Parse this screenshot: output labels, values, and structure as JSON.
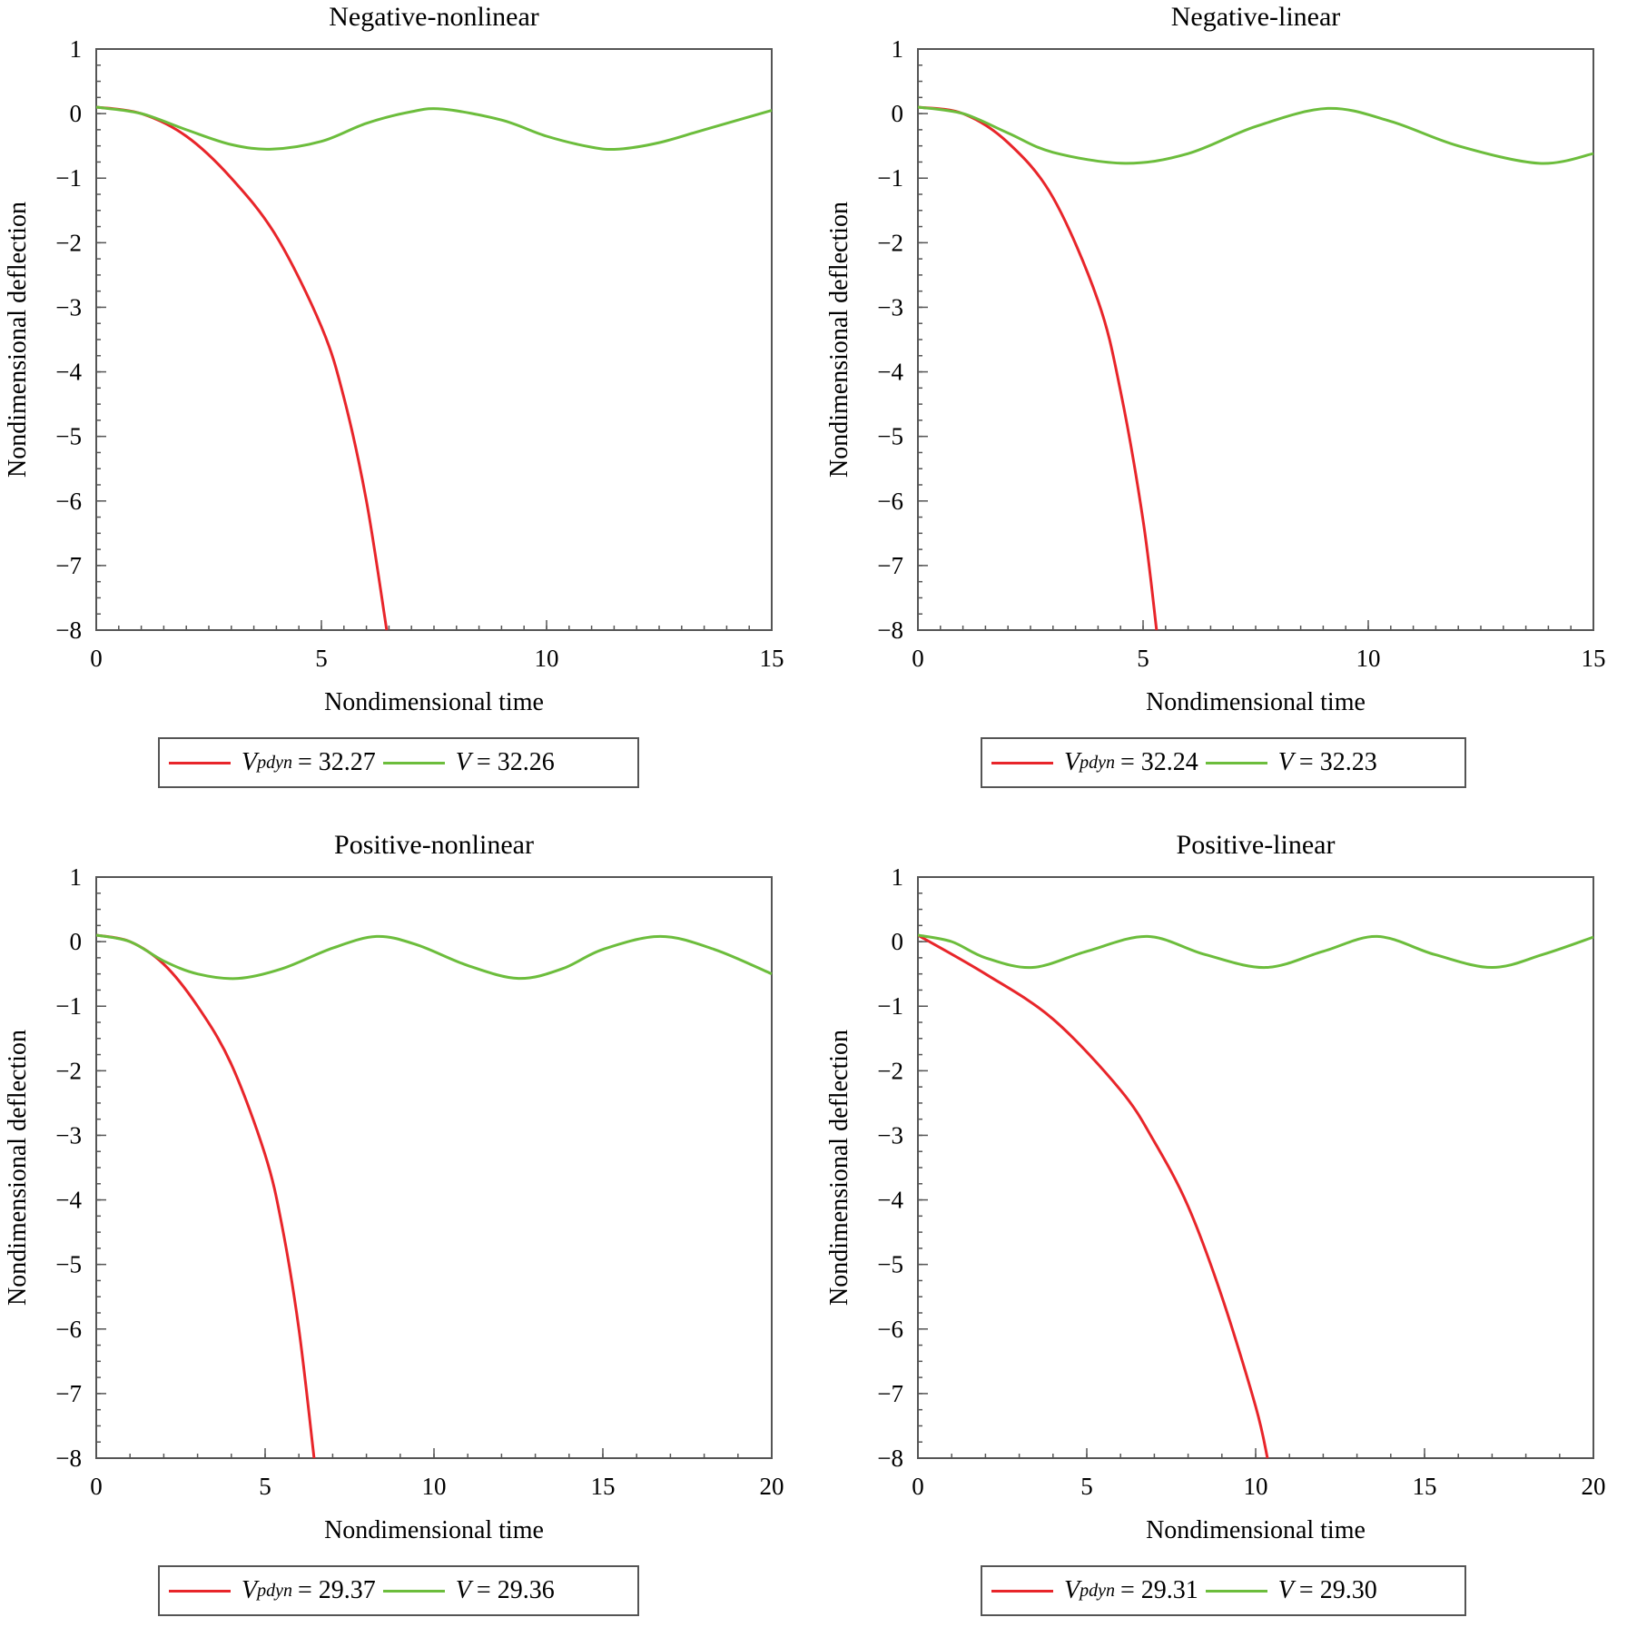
{
  "chart_data": [
    {
      "type": "line",
      "title": "Negative-nonlinear",
      "xlabel": "Nondimensional time",
      "ylabel": "Nondimensional deflection",
      "xlim": [
        0,
        15
      ],
      "ylim": [
        -8,
        1
      ],
      "xticks": [
        0,
        5,
        10,
        15
      ],
      "yticks": [
        1,
        0,
        -1,
        -2,
        -3,
        -4,
        -5,
        -6,
        -7,
        -8
      ],
      "legend_position": "bottom",
      "series": [
        {
          "name": "32.27",
          "legend_var": "V",
          "legend_sub": "pdyn",
          "color": "#e8252a",
          "x": [
            0,
            1,
            2,
            3,
            4,
            5,
            5.5,
            6,
            6.45
          ],
          "y": [
            0.1,
            0.0,
            -0.35,
            -1.0,
            -1.9,
            -3.3,
            -4.4,
            -6.0,
            -8.0
          ]
        },
        {
          "name": "32.26",
          "legend_var": "V",
          "legend_sub": "",
          "color": "#6cbd3c",
          "x": [
            0,
            1,
            2,
            3,
            3.9,
            5,
            6,
            7,
            7.7,
            9,
            10,
            11,
            11.6,
            12.5,
            13.5,
            15
          ],
          "y": [
            0.1,
            0.0,
            -0.25,
            -0.48,
            -0.55,
            -0.43,
            -0.15,
            0.03,
            0.07,
            -0.1,
            -0.35,
            -0.52,
            -0.55,
            -0.45,
            -0.25,
            0.05
          ]
        }
      ]
    },
    {
      "type": "line",
      "title": "Negative-linear",
      "xlabel": "Nondimensional time",
      "ylabel": "Nondimensional deflection",
      "xlim": [
        0,
        15
      ],
      "ylim": [
        -8,
        1
      ],
      "xticks": [
        0,
        5,
        10,
        15
      ],
      "yticks": [
        1,
        0,
        -1,
        -2,
        -3,
        -4,
        -5,
        -6,
        -7,
        -8
      ],
      "legend_position": "bottom",
      "series": [
        {
          "name": "32.24",
          "legend_var": "V",
          "legend_sub": "pdyn",
          "color": "#e8252a",
          "x": [
            0,
            1,
            2,
            3,
            4,
            4.5,
            5,
            5.3
          ],
          "y": [
            0.1,
            0.0,
            -0.45,
            -1.3,
            -2.9,
            -4.3,
            -6.3,
            -8.0
          ]
        },
        {
          "name": "32.23",
          "legend_var": "V",
          "legend_sub": "",
          "color": "#6cbd3c",
          "x": [
            0,
            1,
            2,
            3,
            4.6,
            6,
            7.5,
            9.1,
            10.5,
            12,
            13.8,
            15
          ],
          "y": [
            0.1,
            0.0,
            -0.3,
            -0.6,
            -0.77,
            -0.62,
            -0.2,
            0.08,
            -0.12,
            -0.5,
            -0.77,
            -0.62
          ]
        }
      ]
    },
    {
      "type": "line",
      "title": "Positive-nonlinear",
      "xlabel": "Nondimensional time",
      "ylabel": "Nondimensional deflection",
      "xlim": [
        0,
        20
      ],
      "ylim": [
        -8,
        1
      ],
      "xticks": [
        0,
        5,
        10,
        15,
        20
      ],
      "yticks": [
        1,
        0,
        -1,
        -2,
        -3,
        -4,
        -5,
        -6,
        -7,
        -8
      ],
      "legend_position": "bottom",
      "series": [
        {
          "name": "29.37",
          "legend_var": "V",
          "legend_sub": "pdyn",
          "color": "#e8252a",
          "x": [
            0,
            1,
            2,
            3,
            4,
            5,
            5.5,
            6,
            6.45
          ],
          "y": [
            0.1,
            0.0,
            -0.35,
            -1.0,
            -1.9,
            -3.3,
            -4.4,
            -6.0,
            -8.0
          ]
        },
        {
          "name": "29.36",
          "legend_var": "V",
          "legend_sub": "",
          "color": "#6cbd3c",
          "x": [
            0,
            1,
            2,
            3,
            4.2,
            5.5,
            7,
            8.3,
            9.5,
            11,
            12.5,
            13.8,
            15,
            16.7,
            18.3,
            20
          ],
          "y": [
            0.1,
            0.0,
            -0.3,
            -0.5,
            -0.57,
            -0.42,
            -0.1,
            0.08,
            -0.05,
            -0.37,
            -0.57,
            -0.42,
            -0.12,
            0.08,
            -0.12,
            -0.5
          ]
        }
      ]
    },
    {
      "type": "line",
      "title": "Positive-linear",
      "xlabel": "Nondimensional time",
      "ylabel": "Nondimensional deflection",
      "xlim": [
        0,
        20
      ],
      "ylim": [
        -8,
        1
      ],
      "xticks": [
        0,
        5,
        10,
        15,
        20
      ],
      "yticks": [
        1,
        0,
        -1,
        -2,
        -3,
        -4,
        -5,
        -6,
        -7,
        -8
      ],
      "legend_position": "bottom",
      "series": [
        {
          "name": "29.31",
          "legend_var": "V",
          "legend_sub": "pdyn",
          "color": "#e8252a",
          "x": [
            0,
            2,
            4,
            6,
            7,
            8,
            9,
            10,
            10.35
          ],
          "y": [
            0.1,
            -0.5,
            -1.2,
            -2.3,
            -3.1,
            -4.1,
            -5.5,
            -7.2,
            -8.0
          ]
        },
        {
          "name": "29.30",
          "legend_var": "V",
          "legend_sub": "",
          "color": "#6cbd3c",
          "x": [
            0,
            1,
            2,
            3.4,
            5,
            6.8,
            8.5,
            10.3,
            12,
            13.6,
            15.3,
            17,
            18.5,
            20
          ],
          "y": [
            0.1,
            0.0,
            -0.25,
            -0.4,
            -0.15,
            0.08,
            -0.2,
            -0.4,
            -0.15,
            0.08,
            -0.2,
            -0.4,
            -0.2,
            0.07
          ]
        }
      ]
    }
  ]
}
